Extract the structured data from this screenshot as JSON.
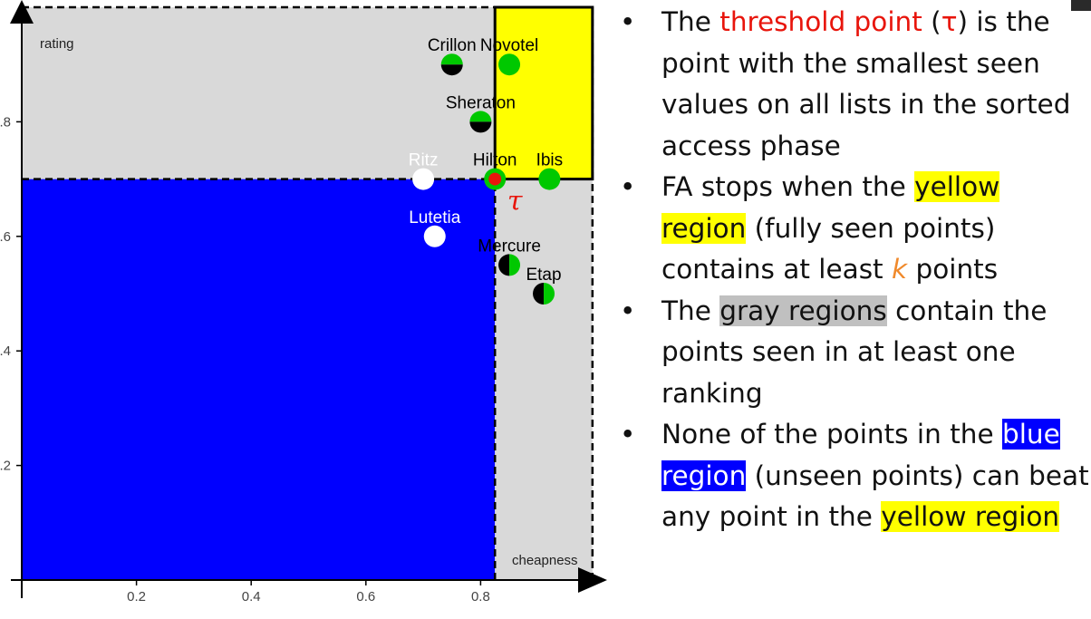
{
  "chart_data": {
    "type": "scatter",
    "xlabel": "cheapness",
    "ylabel": "rating",
    "xlim": [
      0,
      1
    ],
    "ylim": [
      0,
      1
    ],
    "xticks": [
      {
        "v": 0.2,
        "label": "0.2"
      },
      {
        "v": 0.4,
        "label": "0.4"
      },
      {
        "v": 0.6,
        "label": "0.6"
      },
      {
        "v": 0.8,
        "label": "0.8"
      }
    ],
    "yticks": [
      {
        "v": 0.2,
        "label": ".2"
      },
      {
        "v": 0.4,
        "label": ".4"
      },
      {
        "v": 0.6,
        "label": ".6"
      },
      {
        "v": 0.8,
        "label": ".8"
      }
    ],
    "threshold": {
      "x": 0.825,
      "y": 0.7,
      "label": "τ"
    },
    "regions": [
      {
        "name": "blue",
        "color": "#0000ff",
        "x": [
          0,
          0.825
        ],
        "y": [
          0,
          0.7
        ]
      },
      {
        "name": "yellow",
        "color": "#ffff00",
        "x": [
          0.825,
          0.995
        ],
        "y": [
          0.7,
          1.0
        ]
      },
      {
        "name": "gray-top",
        "color": "#d9d9d9",
        "x": [
          0,
          0.825
        ],
        "y": [
          0.7,
          1.0
        ]
      },
      {
        "name": "gray-right",
        "color": "#d9d9d9",
        "x": [
          0.825,
          0.995
        ],
        "y": [
          0,
          0.7
        ]
      }
    ],
    "points": [
      {
        "name": "Crillon",
        "x": 0.75,
        "y": 0.9,
        "fill": "half",
        "label_color": "#000000"
      },
      {
        "name": "Novotel",
        "x": 0.85,
        "y": 0.9,
        "fill": "green",
        "label_color": "#000000"
      },
      {
        "name": "Sheraton",
        "x": 0.8,
        "y": 0.8,
        "fill": "half",
        "label_color": "#000000"
      },
      {
        "name": "Ritz",
        "x": 0.7,
        "y": 0.7,
        "fill": "white",
        "label_color": "#ffffff"
      },
      {
        "name": "Hilton",
        "x": 0.825,
        "y": 0.7,
        "fill": "threshold",
        "label_color": "#000000"
      },
      {
        "name": "Ibis",
        "x": 0.92,
        "y": 0.7,
        "fill": "green",
        "label_color": "#000000"
      },
      {
        "name": "Lutetia",
        "x": 0.72,
        "y": 0.6,
        "fill": "white",
        "label_color": "#ffffff"
      },
      {
        "name": "Mercure",
        "x": 0.85,
        "y": 0.55,
        "fill": "half-vertical",
        "label_color": "#000000"
      },
      {
        "name": "Etap",
        "x": 0.91,
        "y": 0.5,
        "fill": "half-vertical",
        "label_color": "#000000"
      }
    ],
    "colors": {
      "green": "#00c800",
      "black": "#000000",
      "white": "#ffffff",
      "threshold_red": "#e8150c",
      "gray": "#d9d9d9",
      "blue": "#0000ff",
      "yellow": "#ffff00"
    }
  },
  "bullets": [
    {
      "dot": "•",
      "parts": [
        {
          "text": "The "
        },
        {
          "text": "threshold point",
          "style": "red"
        },
        {
          "text": " ("
        },
        {
          "text": "τ",
          "style": "red"
        },
        {
          "text": ") is the point with the smallest seen values on all lists in the sorted access phase"
        }
      ]
    },
    {
      "dot": "•",
      "parts": [
        {
          "text": "FA stops when the "
        },
        {
          "text": "yellow region",
          "style": "hl-yellow"
        },
        {
          "text": " (fully seen points) contains at least "
        },
        {
          "text": "k",
          "style": "orange"
        },
        {
          "text": " points"
        }
      ]
    },
    {
      "dot": "•",
      "parts": [
        {
          "text": "The "
        },
        {
          "text": "gray regions",
          "style": "hl-gray"
        },
        {
          "text": " contain the points seen in at least one ranking"
        }
      ]
    },
    {
      "dot": "•",
      "parts": [
        {
          "text": "None of the points in the "
        },
        {
          "text": "blue region",
          "style": "hl-blue"
        },
        {
          "text": " (unseen points) can beat any point in the "
        },
        {
          "text": "yellow region",
          "style": "hl-yellow"
        }
      ]
    }
  ]
}
